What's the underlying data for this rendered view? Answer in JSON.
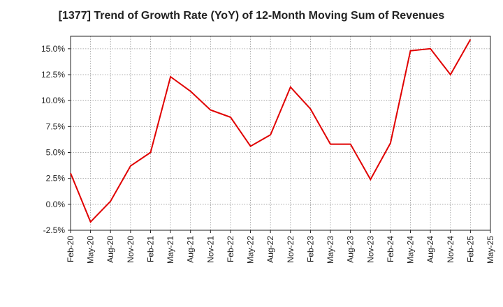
{
  "chart_data": {
    "type": "line",
    "title": "[1377]  Trend of Growth Rate (YoY) of 12-Month Moving Sum of Revenues",
    "xlabel": "",
    "ylabel": "",
    "y_tick_labels": [
      "-2.5%",
      "0.0%",
      "2.5%",
      "5.0%",
      "7.5%",
      "10.0%",
      "12.5%",
      "15.0%"
    ],
    "y_ticks": [
      -2.5,
      0,
      2.5,
      5,
      7.5,
      10,
      12.5,
      15
    ],
    "ylim": [
      -2.5,
      16.2
    ],
    "x_tick_labels": [
      "Feb-20",
      "May-20",
      "Aug-20",
      "Nov-20",
      "Feb-21",
      "May-21",
      "Aug-21",
      "Nov-21",
      "Feb-22",
      "May-22",
      "Aug-22",
      "Nov-22",
      "Feb-23",
      "May-23",
      "Aug-23",
      "Nov-23",
      "Feb-24",
      "May-24",
      "Aug-24",
      "Nov-24",
      "Feb-25",
      "May-25"
    ],
    "grid": true,
    "legend": "none",
    "series": [
      {
        "color": "#e00000",
        "x": [
          "Feb-20",
          "May-20",
          "Aug-20",
          "Nov-20",
          "Feb-21",
          "May-21",
          "Aug-21",
          "Nov-21",
          "Feb-22",
          "May-22",
          "Aug-22",
          "Nov-22",
          "Feb-23",
          "May-23",
          "Aug-23",
          "Nov-23",
          "Feb-24",
          "May-24",
          "Aug-24",
          "Nov-24",
          "Feb-25"
        ],
        "values": [
          3.0,
          -1.7,
          0.3,
          3.7,
          5.0,
          12.3,
          10.9,
          9.1,
          8.4,
          5.6,
          6.7,
          11.3,
          9.2,
          5.8,
          5.8,
          2.4,
          5.9,
          14.8,
          15.0,
          12.5,
          15.9
        ]
      }
    ]
  }
}
